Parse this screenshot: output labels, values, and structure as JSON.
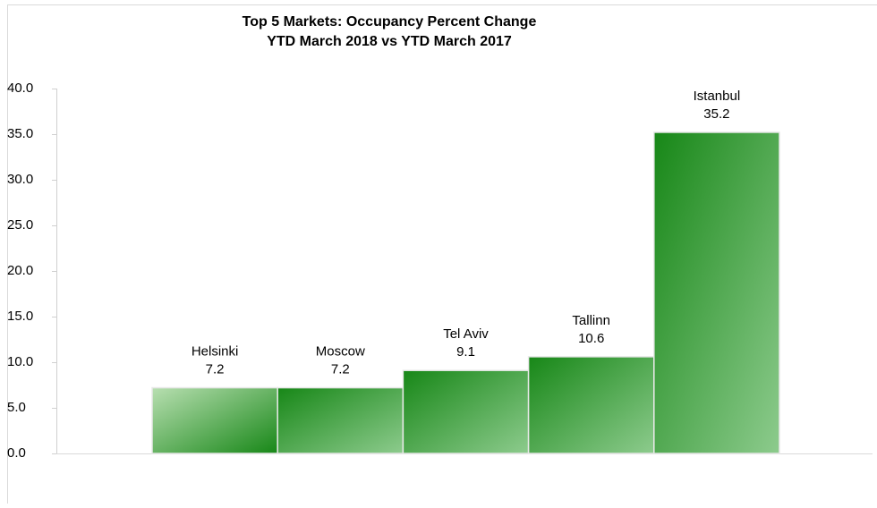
{
  "chart_data": {
    "type": "bar",
    "title": "Top 5 Markets: Occupancy Percent Change",
    "subtitle": "YTD March 2018 vs YTD March 2017",
    "categories": [
      "Helsinki",
      "Moscow",
      "Tel Aviv",
      "Tallinn",
      "Istanbul"
    ],
    "values": [
      7.2,
      7.2,
      9.1,
      10.6,
      35.2
    ],
    "colors": [
      [
        "#b8dfb1",
        "#178717"
      ],
      [
        "#178717",
        "#8dcb8d"
      ],
      [
        "#178717",
        "#8dcb8d"
      ],
      [
        "#178717",
        "#8dcb8d"
      ],
      [
        "#178717",
        "#8dcb8d"
      ]
    ],
    "ylim": [
      0,
      40
    ],
    "yticks": [
      {
        "value": 0,
        "label": "0.0"
      },
      {
        "value": 5,
        "label": "5.0"
      },
      {
        "value": 10,
        "label": "10.0"
      },
      {
        "value": 15,
        "label": "15.0"
      },
      {
        "value": 20,
        "label": "20.0"
      },
      {
        "value": 25,
        "label": "25.0"
      },
      {
        "value": 30,
        "label": "30.0"
      },
      {
        "value": 35,
        "label": "35.0"
      },
      {
        "value": 40,
        "label": "40.0"
      }
    ],
    "grid": false
  }
}
